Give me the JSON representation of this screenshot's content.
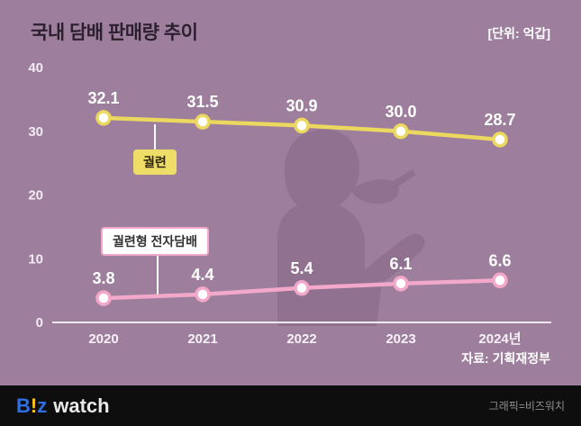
{
  "header": {
    "title": "국내 담배 판매량 추이",
    "unit_label": "[단위: 억갑]"
  },
  "chart_data": {
    "type": "line",
    "categories": [
      "2020",
      "2021",
      "2022",
      "2023",
      "2024년"
    ],
    "series": [
      {
        "name": "궐련",
        "values": [
          32.1,
          31.5,
          30.9,
          30.0,
          28.7
        ],
        "color": "#ecd75f"
      },
      {
        "name": "궐련형 전자담배",
        "values": [
          3.8,
          4.4,
          5.4,
          6.1,
          6.6
        ],
        "color": "#f3a8ca"
      }
    ],
    "ylim": [
      0,
      40
    ],
    "yticks": [
      40,
      30,
      20,
      10,
      0
    ],
    "grid": false,
    "legend_position": "inline-callouts",
    "marker": "open-circle",
    "background_color": "#9d7f9d"
  },
  "source": "자료: 기획재정부",
  "footer": {
    "logo": {
      "b": "B",
      "bang": "!",
      "z": "z",
      "word": "watch"
    },
    "credit": "그래픽=비즈워치"
  }
}
